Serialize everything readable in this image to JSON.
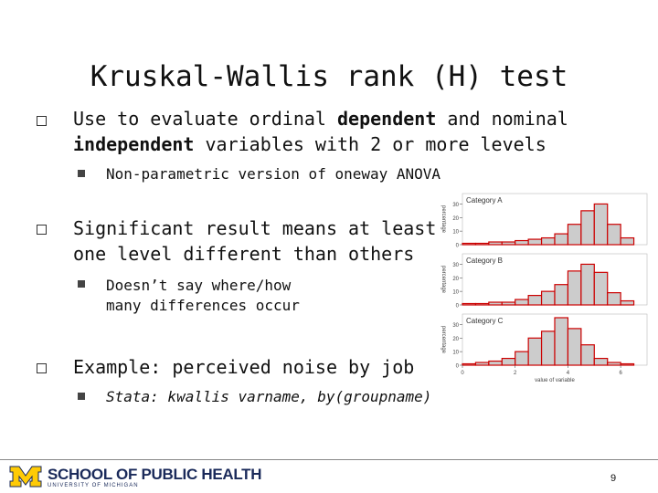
{
  "slide": {
    "title": "Kruskal-Wallis rank (H) test",
    "bullets": [
      {
        "pre": "Use to evaluate ordinal ",
        "bold1": "dependent",
        "mid": " and nominal",
        "bold2": "independent",
        "post": " variables with 2 or more levels",
        "sub": "Non-parametric version of oneway ANOVA"
      },
      {
        "line1": "Significant result means at least",
        "line2": "one level different than others",
        "sub_line1": "Doesn’t say where/how",
        "sub_line2": "many differences occur"
      },
      {
        "text": "Example: perceived noise by job",
        "sub": "Stata: kwallis varname, by(groupname)"
      }
    ]
  },
  "footer": {
    "school": "SCHOOL OF PUBLIC HEALTH",
    "university": "UNIVERSITY OF MICHIGAN",
    "page_number": "9",
    "brand_color": "#1a2a5a",
    "maize_color": "#ffcb05"
  },
  "chart_data": {
    "type": "bar",
    "ylabel": "percentage",
    "xlabel": "value of variable",
    "x_ticks": [
      "0",
      "2",
      "4",
      "6"
    ],
    "y_ticks": [
      "0",
      "10",
      "20",
      "30"
    ],
    "bin_edges": [
      0,
      0.5,
      1,
      1.5,
      2,
      2.5,
      3,
      3.5,
      4,
      4.5,
      5,
      5.5,
      6,
      6.5
    ],
    "xlim": [
      0,
      7
    ],
    "ylim": [
      0,
      35
    ],
    "panels": [
      {
        "name": "Category A",
        "values": [
          1,
          1,
          2,
          2,
          3,
          4,
          5,
          8,
          15,
          25,
          30,
          15,
          5
        ]
      },
      {
        "name": "Category B",
        "values": [
          1,
          1,
          2,
          2,
          4,
          7,
          10,
          15,
          25,
          30,
          24,
          9,
          3
        ]
      },
      {
        "name": "Category C",
        "values": [
          1,
          2,
          3,
          5,
          10,
          20,
          25,
          35,
          27,
          15,
          5,
          2,
          1
        ]
      }
    ],
    "bar_fill": "#cccccc",
    "bar_stroke": "#cc0000"
  }
}
